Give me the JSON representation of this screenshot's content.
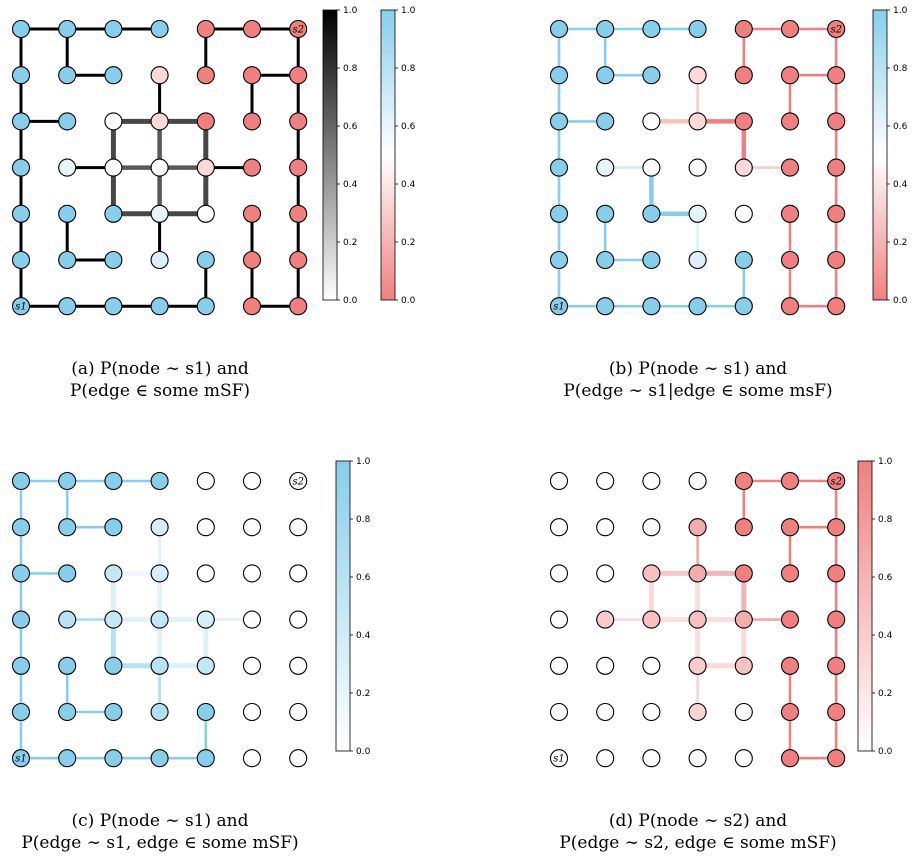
{
  "figure": {
    "panels": [
      {
        "id": "a",
        "caption_line1": "(a) P(node ∼ s1) and",
        "caption_line2": "P(edge ∈ some mSF)",
        "colorbars": [
          {
            "colormap": "gray",
            "ticks": [
              "0.0",
              "0.2",
              "0.4",
              "0.6",
              "0.8",
              "1.0"
            ]
          },
          {
            "colormap": "red-white-blue",
            "ticks": [
              "0.0",
              "0.2",
              "0.4",
              "0.6",
              "0.8",
              "1.0"
            ]
          }
        ]
      },
      {
        "id": "b",
        "caption_line1": "(b) P(node ∼ s1) and",
        "caption_line2": "P(edge ∼ s1|edge ∈ some msF)",
        "colorbars": [
          {
            "colormap": "red-white-blue",
            "ticks": [
              "0.0",
              "0.2",
              "0.4",
              "0.6",
              "0.8",
              "1.0"
            ]
          }
        ]
      },
      {
        "id": "c",
        "caption_line1": "(c) P(node ∼ s1) and",
        "caption_line2": "P(edge ∼ s1, edge ∈ some mSF)",
        "colorbars": [
          {
            "colormap": "white-blue",
            "ticks": [
              "0.0",
              "0.2",
              "0.4",
              "0.6",
              "0.8",
              "1.0"
            ]
          }
        ]
      },
      {
        "id": "d",
        "caption_line1": "(d) P(node ∼ s2) and",
        "caption_line2": "P(edge ∼ s2, edge ∈ some mSF)",
        "colorbars": [
          {
            "colormap": "white-red",
            "ticks": [
              "0.0",
              "0.2",
              "0.4",
              "0.6",
              "0.8",
              "1.0"
            ]
          }
        ]
      }
    ],
    "node_labels": {
      "s1": "s1",
      "s2": "s2"
    },
    "colors": {
      "blue": "#87ceeb",
      "red": "#f08080",
      "white": "#ffffff",
      "black": "#000000",
      "outline": "#000000"
    },
    "grid": {
      "rows": 7,
      "cols": 7
    },
    "node_values_s1": [
      [
        1,
        1,
        1,
        1,
        0,
        0,
        0
      ],
      [
        1,
        1,
        1,
        0.35,
        0,
        0,
        0
      ],
      [
        1,
        1,
        0.5,
        0.35,
        0,
        0,
        0
      ],
      [
        1,
        0.6,
        0.5,
        0.5,
        0.35,
        0,
        0
      ],
      [
        1,
        1,
        1,
        0.6,
        0.5,
        0,
        0
      ],
      [
        1,
        1,
        1,
        0.65,
        1,
        0,
        0
      ],
      [
        1,
        1,
        1,
        1,
        1,
        0,
        0
      ]
    ],
    "edges": [
      {
        "a": [
          0,
          0
        ],
        "b": [
          0,
          1
        ],
        "msf": 1.0,
        "s1": 1.0,
        "s2": 0.0
      },
      {
        "a": [
          0,
          1
        ],
        "b": [
          0,
          2
        ],
        "msf": 1.0,
        "s1": 1.0,
        "s2": 0.0
      },
      {
        "a": [
          0,
          2
        ],
        "b": [
          0,
          3
        ],
        "msf": 1.0,
        "s1": 1.0,
        "s2": 0.0
      },
      {
        "a": [
          0,
          4
        ],
        "b": [
          0,
          5
        ],
        "msf": 1.0,
        "s1": 0.0,
        "s2": 1.0
      },
      {
        "a": [
          0,
          5
        ],
        "b": [
          0,
          6
        ],
        "msf": 1.0,
        "s1": 0.0,
        "s2": 1.0
      },
      {
        "a": [
          0,
          0
        ],
        "b": [
          1,
          0
        ],
        "msf": 1.0,
        "s1": 1.0,
        "s2": 0.0
      },
      {
        "a": [
          0,
          1
        ],
        "b": [
          1,
          1
        ],
        "msf": 1.0,
        "s1": 1.0,
        "s2": 0.0
      },
      {
        "a": [
          0,
          4
        ],
        "b": [
          1,
          4
        ],
        "msf": 1.0,
        "s1": 0.0,
        "s2": 1.0
      },
      {
        "a": [
          0,
          6
        ],
        "b": [
          1,
          6
        ],
        "msf": 1.0,
        "s1": 0.0,
        "s2": 1.0
      },
      {
        "a": [
          1,
          1
        ],
        "b": [
          1,
          2
        ],
        "msf": 1.0,
        "s1": 1.0,
        "s2": 0.0
      },
      {
        "a": [
          1,
          5
        ],
        "b": [
          1,
          6
        ],
        "msf": 1.0,
        "s1": 0.0,
        "s2": 1.0
      },
      {
        "a": [
          1,
          0
        ],
        "b": [
          2,
          0
        ],
        "msf": 1.0,
        "s1": 1.0,
        "s2": 0.0
      },
      {
        "a": [
          1,
          3
        ],
        "b": [
          2,
          3
        ],
        "msf": 1.0,
        "s1": 0.3,
        "s2": 0.7
      },
      {
        "a": [
          1,
          5
        ],
        "b": [
          2,
          5
        ],
        "msf": 1.0,
        "s1": 0.0,
        "s2": 1.0
      },
      {
        "a": [
          1,
          6
        ],
        "b": [
          2,
          6
        ],
        "msf": 1.0,
        "s1": 0.0,
        "s2": 1.0
      },
      {
        "a": [
          2,
          0
        ],
        "b": [
          2,
          1
        ],
        "msf": 1.0,
        "s1": 1.0,
        "s2": 0.0
      },
      {
        "a": [
          2,
          2
        ],
        "b": [
          2,
          3
        ],
        "msf": 0.6,
        "s1": 0.15,
        "s2": 0.45
      },
      {
        "a": [
          2,
          3
        ],
        "b": [
          2,
          4
        ],
        "msf": 0.6,
        "s1": 0.0,
        "s2": 0.6
      },
      {
        "a": [
          2,
          0
        ],
        "b": [
          3,
          0
        ],
        "msf": 1.0,
        "s1": 1.0,
        "s2": 0.0
      },
      {
        "a": [
          2,
          2
        ],
        "b": [
          3,
          2
        ],
        "msf": 0.6,
        "s1": 0.3,
        "s2": 0.3
      },
      {
        "a": [
          2,
          3
        ],
        "b": [
          3,
          3
        ],
        "msf": 0.5,
        "s1": 0.25,
        "s2": 0.25
      },
      {
        "a": [
          2,
          4
        ],
        "b": [
          3,
          4
        ],
        "msf": 0.6,
        "s1": 0.0,
        "s2": 0.6
      },
      {
        "a": [
          2,
          6
        ],
        "b": [
          3,
          6
        ],
        "msf": 1.0,
        "s1": 0.0,
        "s2": 1.0
      },
      {
        "a": [
          3,
          1
        ],
        "b": [
          3,
          2
        ],
        "msf": 1.0,
        "s1": 0.7,
        "s2": 0.3
      },
      {
        "a": [
          3,
          2
        ],
        "b": [
          3,
          3
        ],
        "msf": 0.5,
        "s1": 0.25,
        "s2": 0.25
      },
      {
        "a": [
          3,
          3
        ],
        "b": [
          3,
          4
        ],
        "msf": 0.5,
        "s1": 0.25,
        "s2": 0.25
      },
      {
        "a": [
          3,
          4
        ],
        "b": [
          3,
          5
        ],
        "msf": 1.0,
        "s1": 0.3,
        "s2": 0.7
      },
      {
        "a": [
          3,
          0
        ],
        "b": [
          4,
          0
        ],
        "msf": 1.0,
        "s1": 1.0,
        "s2": 0.0
      },
      {
        "a": [
          3,
          2
        ],
        "b": [
          4,
          2
        ],
        "msf": 0.6,
        "s1": 0.6,
        "s2": 0.0
      },
      {
        "a": [
          3,
          3
        ],
        "b": [
          4,
          3
        ],
        "msf": 0.5,
        "s1": 0.25,
        "s2": 0.25
      },
      {
        "a": [
          3,
          4
        ],
        "b": [
          4,
          4
        ],
        "msf": 0.6,
        "s1": 0.3,
        "s2": 0.3
      },
      {
        "a": [
          3,
          6
        ],
        "b": [
          4,
          6
        ],
        "msf": 1.0,
        "s1": 0.0,
        "s2": 1.0
      },
      {
        "a": [
          4,
          2
        ],
        "b": [
          4,
          3
        ],
        "msf": 0.6,
        "s1": 0.6,
        "s2": 0.0
      },
      {
        "a": [
          4,
          3
        ],
        "b": [
          4,
          4
        ],
        "msf": 0.6,
        "s1": 0.3,
        "s2": 0.3
      },
      {
        "a": [
          4,
          5
        ],
        "b": [
          5,
          5
        ],
        "msf": 1.0,
        "s1": 0.0,
        "s2": 1.0
      },
      {
        "a": [
          4,
          0
        ],
        "b": [
          5,
          0
        ],
        "msf": 1.0,
        "s1": 1.0,
        "s2": 0.0
      },
      {
        "a": [
          4,
          1
        ],
        "b": [
          5,
          1
        ],
        "msf": 1.0,
        "s1": 1.0,
        "s2": 0.0
      },
      {
        "a": [
          4,
          3
        ],
        "b": [
          5,
          3
        ],
        "msf": 1.0,
        "s1": 0.65,
        "s2": 0.35
      },
      {
        "a": [
          4,
          6
        ],
        "b": [
          5,
          6
        ],
        "msf": 1.0,
        "s1": 0.0,
        "s2": 1.0
      },
      {
        "a": [
          5,
          1
        ],
        "b": [
          5,
          2
        ],
        "msf": 1.0,
        "s1": 1.0,
        "s2": 0.0
      },
      {
        "a": [
          5,
          0
        ],
        "b": [
          6,
          0
        ],
        "msf": 1.0,
        "s1": 1.0,
        "s2": 0.0
      },
      {
        "a": [
          5,
          4
        ],
        "b": [
          6,
          4
        ],
        "msf": 1.0,
        "s1": 1.0,
        "s2": 0.0
      },
      {
        "a": [
          5,
          5
        ],
        "b": [
          6,
          5
        ],
        "msf": 1.0,
        "s1": 0.0,
        "s2": 1.0
      },
      {
        "a": [
          5,
          6
        ],
        "b": [
          6,
          6
        ],
        "msf": 1.0,
        "s1": 0.0,
        "s2": 1.0
      },
      {
        "a": [
          6,
          0
        ],
        "b": [
          6,
          1
        ],
        "msf": 1.0,
        "s1": 1.0,
        "s2": 0.0
      },
      {
        "a": [
          6,
          1
        ],
        "b": [
          6,
          2
        ],
        "msf": 1.0,
        "s1": 1.0,
        "s2": 0.0
      },
      {
        "a": [
          6,
          2
        ],
        "b": [
          6,
          3
        ],
        "msf": 1.0,
        "s1": 1.0,
        "s2": 0.0
      },
      {
        "a": [
          6,
          3
        ],
        "b": [
          6,
          4
        ],
        "msf": 1.0,
        "s1": 1.0,
        "s2": 0.0
      },
      {
        "a": [
          6,
          5
        ],
        "b": [
          6,
          6
        ],
        "msf": 1.0,
        "s1": 0.0,
        "s2": 1.0
      }
    ]
  }
}
